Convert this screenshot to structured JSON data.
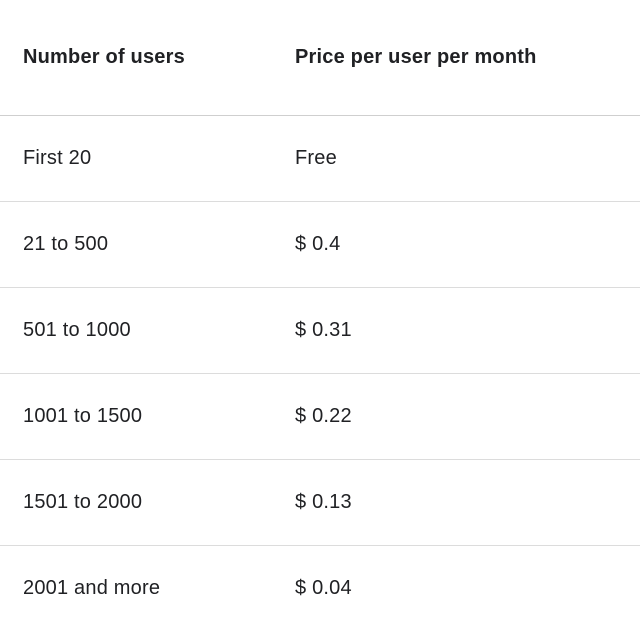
{
  "table": {
    "columns": {
      "users": "Number of users",
      "price": "Price per user per month"
    },
    "rows": [
      {
        "users": "First 20",
        "price": "Free"
      },
      {
        "users": "21 to 500",
        "price": "$ 0.4"
      },
      {
        "users": "501 to 1000",
        "price": "$ 0.31"
      },
      {
        "users": "1001 to 1500",
        "price": "$ 0.22"
      },
      {
        "users": "1501 to 2000",
        "price": "$ 0.13"
      },
      {
        "users": "2001 and more",
        "price": "$ 0.04"
      }
    ]
  },
  "colors": {
    "background": "#ffffff",
    "text": "#202124",
    "header_divider": "#cfcfcf",
    "row_divider": "#dcdcdc"
  }
}
